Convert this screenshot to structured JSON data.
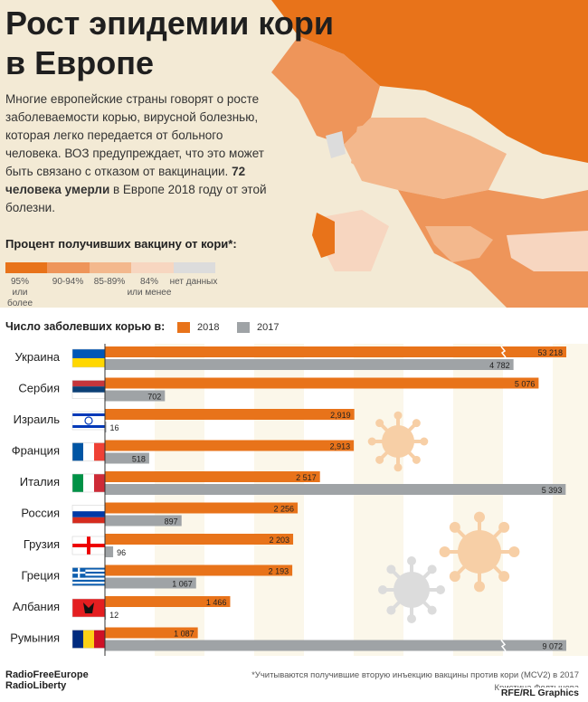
{
  "header": {
    "title_line1": "Рост эпидемии кори",
    "title_line2": "в Европе",
    "intro_part1": "Многие европейские страны говорят о росте заболеваемости корью, вирусной болезнью, которая легко передается от больного человека. ВОЗ предупреждает, что это может быть связано с отказом от вакцинации. ",
    "intro_bold": "72 человека умерли",
    "intro_part2": " в Европе 2018 году от этой болезни."
  },
  "vaccine_legend": {
    "title": "Процент получивших вакцину от кори*:",
    "items": [
      {
        "label": "95%\nили более",
        "color": "#e8731a"
      },
      {
        "label": "90-94%",
        "color": "#ee955a"
      },
      {
        "label": "85-89%",
        "color": "#f3b88d"
      },
      {
        "label": "84%\nили менее",
        "color": "#f7d6c0"
      },
      {
        "label": "нет данных",
        "color": "#dcdcdc"
      }
    ]
  },
  "chart_data": {
    "type": "bar",
    "title": "Число заболевших корью в:",
    "categories": [
      "Украина",
      "Сербия",
      "Израиль",
      "Франция",
      "Италия",
      "Россия",
      "Грузия",
      "Греция",
      "Албания",
      "Румыния"
    ],
    "series": [
      {
        "name": "2018",
        "color": "#e8731a",
        "values": [
          53218,
          5076,
          2919,
          2913,
          2517,
          2256,
          2203,
          2193,
          1466,
          1087
        ],
        "labels": [
          "53 218",
          "5 076",
          "2,919",
          "2,913",
          "2 517",
          "2 256",
          "2 203",
          "2 193",
          "1 466",
          "1 087"
        ]
      },
      {
        "name": "2017",
        "color": "#9fa3a6",
        "values": [
          4782,
          702,
          16,
          518,
          5393,
          897,
          96,
          1067,
          12,
          9072
        ],
        "labels": [
          "4 782",
          "702",
          "16",
          "518",
          "5 393",
          "897",
          "96",
          "1 067",
          "12",
          "9 072"
        ]
      }
    ],
    "broken_axis_bars": [
      "Украина/2018",
      "Румыния/2017"
    ]
  },
  "footer": {
    "logo_line1": "RadioFreeEurope",
    "logo_line2": "RadioLiberty",
    "footnote_line1": "*Учитываются получившие вторую инъекцию вакцины против кори (MCV2) в 2017",
    "footnote_line2": "Кристина Фолтынова",
    "credit": "RFE/RL Graphics"
  }
}
